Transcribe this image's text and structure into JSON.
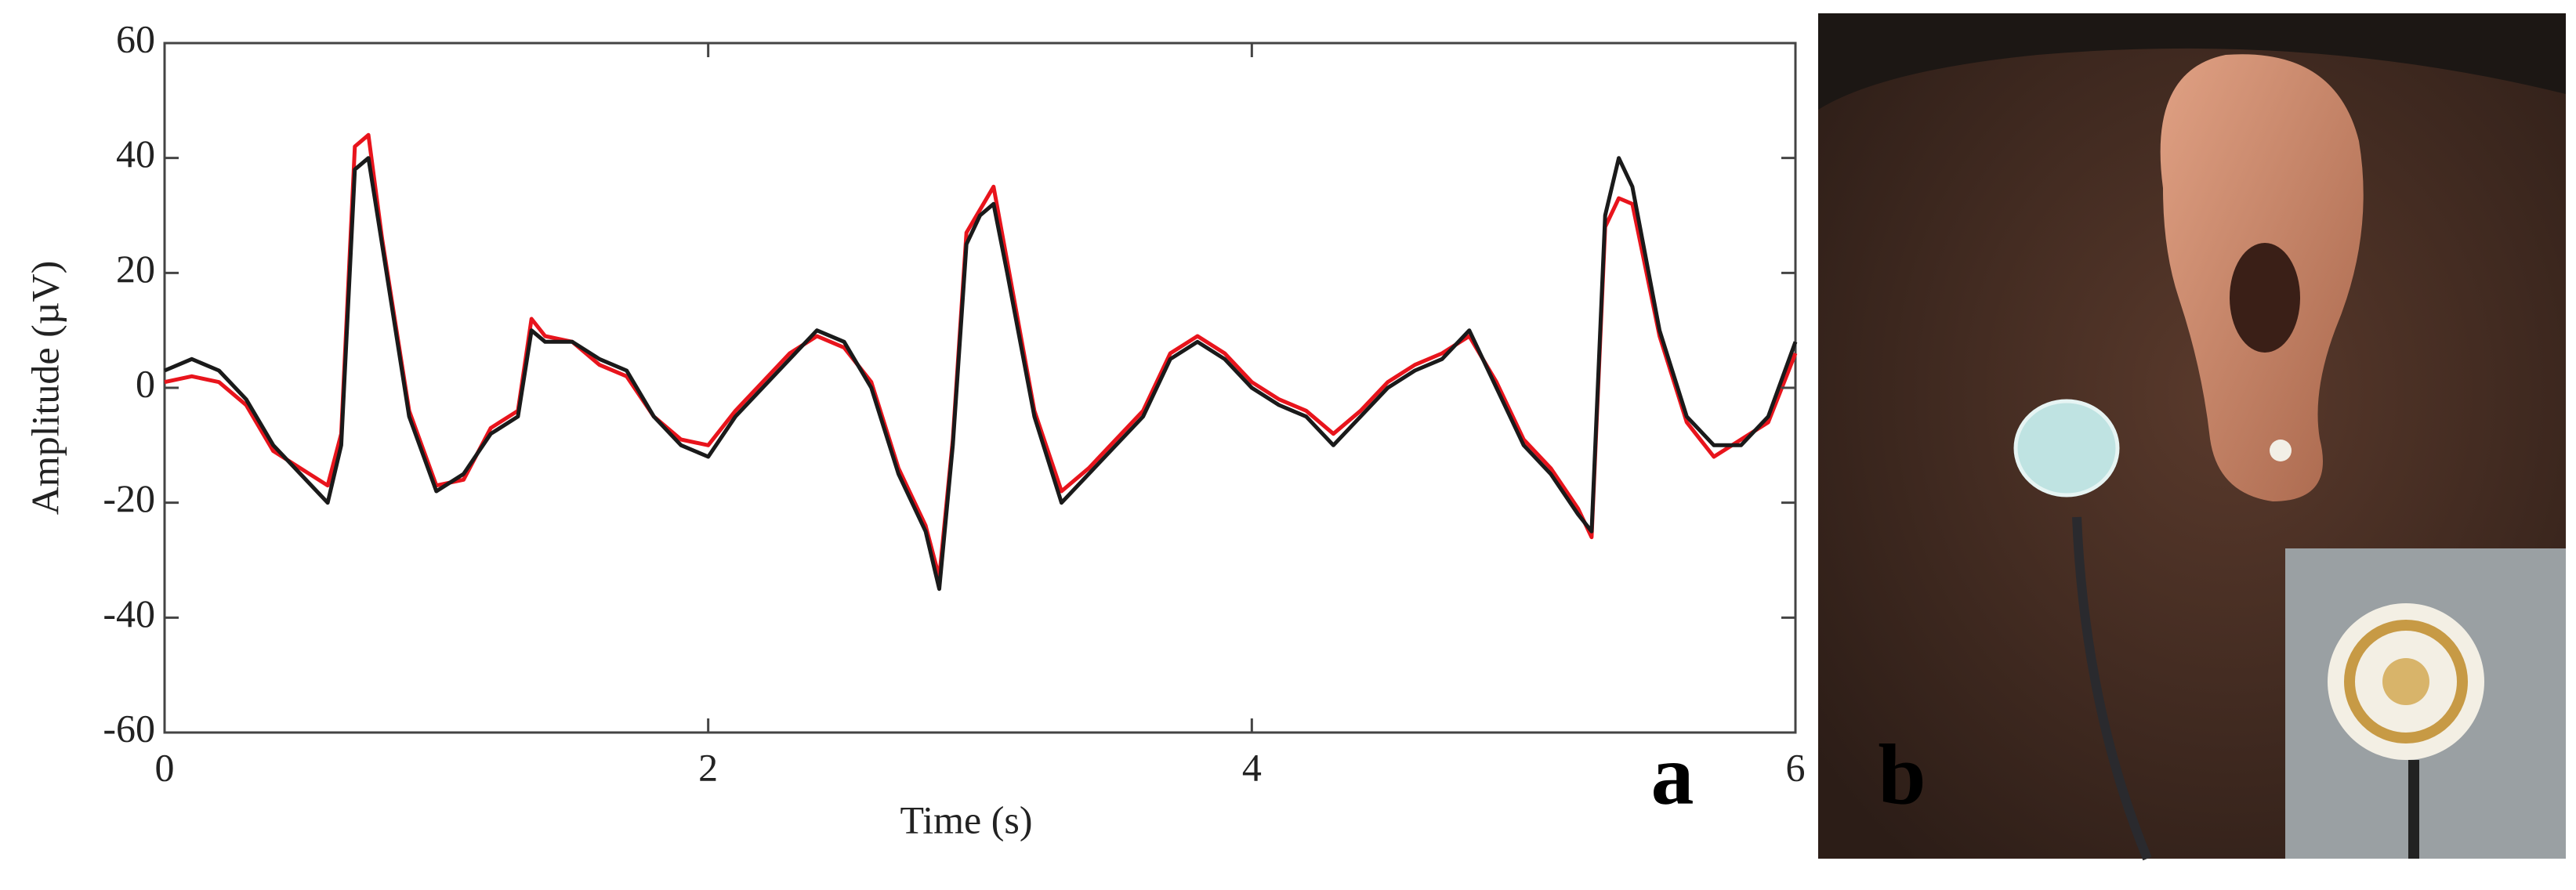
{
  "chart_data": {
    "type": "line",
    "xlabel": "Time (s)",
    "ylabel": "Amplitude (µV)",
    "panel_labels": [
      "a",
      "b"
    ],
    "xlim": [
      0,
      6
    ],
    "xticks": [
      0,
      2,
      4,
      6
    ],
    "ylim": [
      -60,
      60
    ],
    "yticks": [
      60,
      40,
      20,
      0,
      -20,
      -40,
      -60
    ],
    "x": [
      0,
      0.1,
      0.2,
      0.3,
      0.4,
      0.5,
      0.6,
      0.65,
      0.7,
      0.75,
      0.8,
      0.9,
      1.0,
      1.1,
      1.2,
      1.3,
      1.35,
      1.4,
      1.5,
      1.6,
      1.7,
      1.8,
      1.9,
      2.0,
      2.1,
      2.2,
      2.3,
      2.4,
      2.5,
      2.6,
      2.7,
      2.8,
      2.85,
      2.9,
      2.95,
      3.0,
      3.05,
      3.1,
      3.2,
      3.3,
      3.4,
      3.5,
      3.6,
      3.7,
      3.8,
      3.9,
      4.0,
      4.1,
      4.2,
      4.3,
      4.4,
      4.5,
      4.6,
      4.7,
      4.8,
      4.9,
      5.0,
      5.1,
      5.2,
      5.25,
      5.3,
      5.35,
      5.4,
      5.5,
      5.6,
      5.7,
      5.8,
      5.9,
      6.0
    ],
    "series": [
      {
        "color": "#e8141c",
        "values": [
          1,
          2,
          1,
          -3,
          -11,
          -14,
          -17,
          -8,
          42,
          44,
          26,
          -4,
          -17,
          -16,
          -7,
          -4,
          12,
          9,
          8,
          4,
          2,
          -5,
          -9,
          -10,
          -4,
          1,
          6,
          9,
          7,
          1,
          -14,
          -24,
          -33,
          -9,
          27,
          31,
          35,
          22,
          -4,
          -18,
          -14,
          -9,
          -4,
          6,
          9,
          6,
          1,
          -2,
          -4,
          -8,
          -4,
          1,
          4,
          6,
          9,
          1,
          -9,
          -14,
          -21,
          -26,
          28,
          33,
          32,
          9,
          -6,
          -12,
          -9,
          -6,
          6
        ]
      },
      {
        "color": "#1a1a1a",
        "values": [
          3,
          5,
          3,
          -2,
          -10,
          -15,
          -20,
          -10,
          38,
          40,
          25,
          -5,
          -18,
          -15,
          -8,
          -5,
          10,
          8,
          8,
          5,
          3,
          -5,
          -10,
          -12,
          -5,
          0,
          5,
          10,
          8,
          0,
          -15,
          -25,
          -35,
          -10,
          25,
          30,
          32,
          20,
          -5,
          -20,
          -15,
          -10,
          -5,
          5,
          8,
          5,
          0,
          -3,
          -5,
          -10,
          -5,
          0,
          3,
          5,
          10,
          0,
          -10,
          -15,
          -22,
          -25,
          30,
          40,
          35,
          10,
          -5,
          -10,
          -10,
          -5,
          8
        ]
      }
    ]
  }
}
